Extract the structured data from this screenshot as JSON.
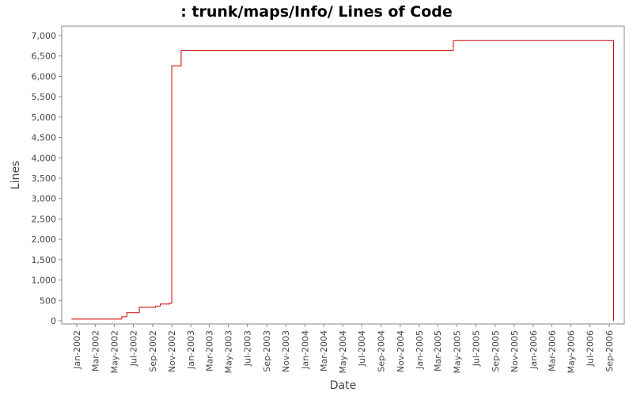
{
  "chart_data": {
    "type": "line",
    "title": ": trunk/maps/Info/ Lines of Code",
    "xlabel": "Date",
    "ylabel": "Lines",
    "ylim": [
      0,
      7000
    ],
    "y_ticks": [
      0,
      500,
      1000,
      1500,
      2000,
      2500,
      3000,
      3500,
      4000,
      4500,
      5000,
      5500,
      6000,
      6500,
      7000
    ],
    "y_tick_labels": [
      "0",
      "500",
      "1,000",
      "1,500",
      "2,000",
      "2,500",
      "3,000",
      "3,500",
      "4,000",
      "4,500",
      "5,000",
      "5,500",
      "6,000",
      "6,500",
      "7,000"
    ],
    "x_tick_labels": [
      "Jan-2002",
      "Mar-2002",
      "May-2002",
      "Jul-2002",
      "Sep-2002",
      "Nov-2002",
      "Jan-2003",
      "Mar-2003",
      "May-2003",
      "Jul-2003",
      "Sep-2003",
      "Nov-2003",
      "Jan-2004",
      "Mar-2004",
      "May-2004",
      "Jul-2004",
      "Sep-2004",
      "Nov-2004",
      "Jan-2005",
      "Mar-2005",
      "May-2005",
      "Jul-2005",
      "Sep-2005",
      "Nov-2005",
      "Jan-2006",
      "Mar-2006",
      "May-2006",
      "Jul-2006",
      "Sep-2006"
    ],
    "grid": false,
    "series": [
      {
        "color": "#cc0000",
        "step": true,
        "points": [
          [
            "2001-12-15",
            40
          ],
          [
            "2002-05-25",
            100
          ],
          [
            "2002-06-10",
            200
          ],
          [
            "2002-07-20",
            330
          ],
          [
            "2002-09-10",
            360
          ],
          [
            "2002-09-25",
            410
          ],
          [
            "2002-10-25",
            430
          ],
          [
            "2002-11-01",
            6260
          ],
          [
            "2002-12-01",
            6640
          ],
          [
            "2005-04-20",
            6880
          ],
          [
            "2006-09-15",
            6880
          ],
          [
            "2006-09-15",
            0
          ]
        ]
      }
    ]
  }
}
